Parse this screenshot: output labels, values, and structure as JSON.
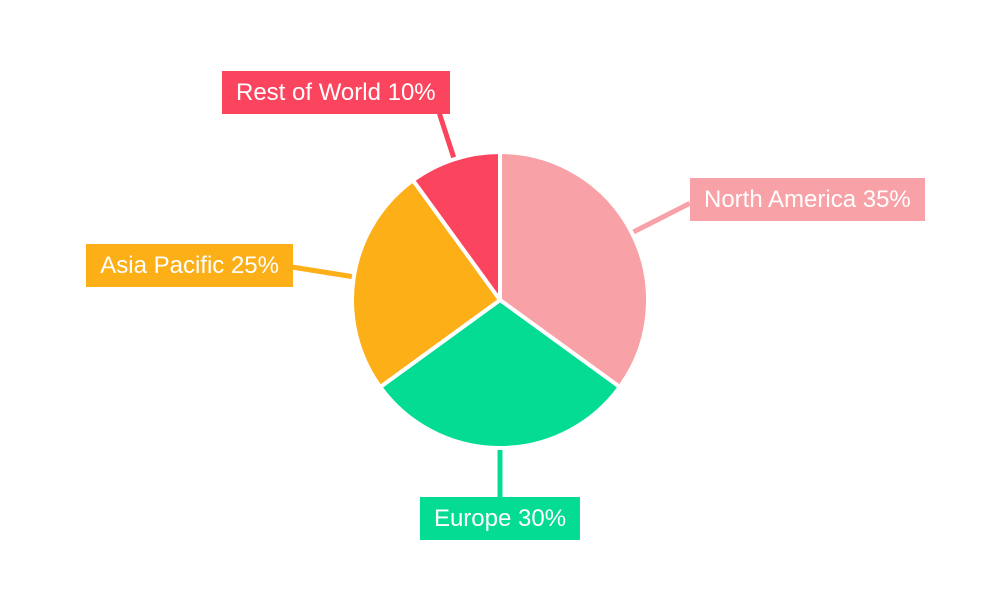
{
  "page": {
    "background": "#FFFFFF"
  },
  "chart_data": {
    "type": "pie",
    "categories": [
      "North America",
      "Europe",
      "Asia Pacific",
      "Rest of World"
    ],
    "values": [
      35,
      30,
      25,
      10
    ],
    "unit": "percent",
    "series_total": 100,
    "colors": [
      "#F8A1A6",
      "#04DC93",
      "#FCAF17",
      "#FB455F"
    ],
    "callout_labels": {
      "north_america": "North America 35%",
      "europe": "Europe 30%",
      "asia_pacific": "Asia Pacific 25%",
      "rest_of_world": "Rest of World 10%"
    },
    "start_angle_deg": 0,
    "direction": "clockwise",
    "slice_border_color": "#FFFFFF",
    "label_text_color": "#FFFFFF",
    "legend_position": "callout-labels",
    "background": "#FFFFFF",
    "grid": "off"
  }
}
